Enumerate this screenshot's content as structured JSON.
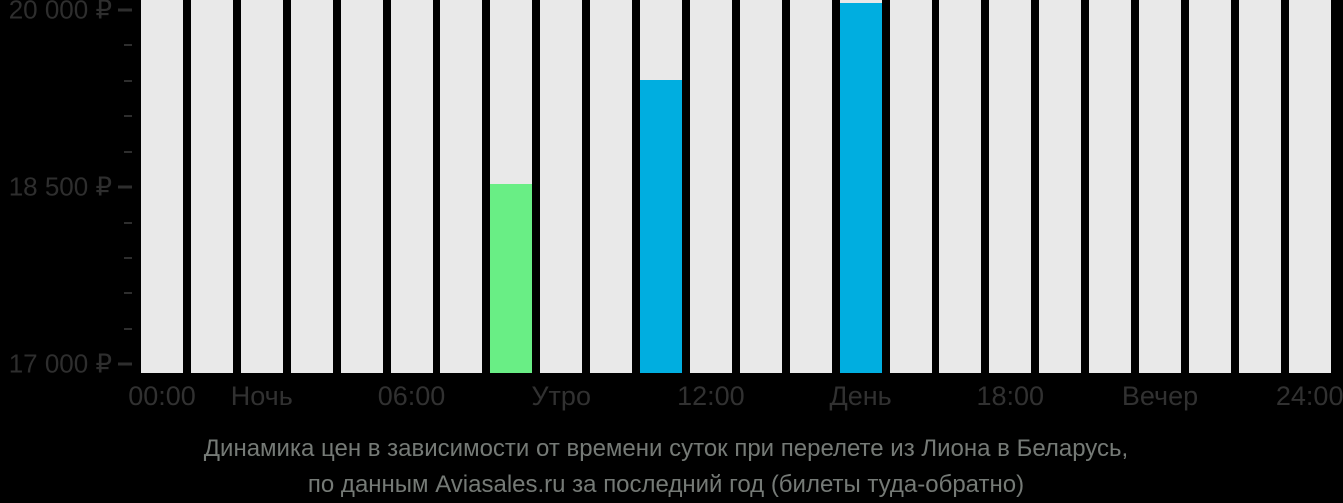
{
  "colors": {
    "background": "#000000",
    "slot_bar": "#E9E9E9",
    "bar_green": "#69EE85",
    "bar_blue": "#00AEE0",
    "y_axis_text": "#2E2E2E",
    "x_axis_text": "#313131",
    "caption_text": "#757A76"
  },
  "chart_data": {
    "type": "bar",
    "description": "Flight ticket price by departure time of day, 24 hourly slots; empty slots shown as light background columns",
    "slots": 24,
    "bars": [
      {
        "hour": 7,
        "value": 18530,
        "color_key": "bar_green"
      },
      {
        "hour": 10,
        "value": 19410,
        "color_key": "bar_blue"
      },
      {
        "hour": 14,
        "value": 20060,
        "color_key": "bar_blue"
      }
    ],
    "y_axis": {
      "ticks": [
        {
          "value": 20000,
          "label": "20 000 ₽"
        },
        {
          "value": 18500,
          "label": "18 500 ₽"
        },
        {
          "value": 17000,
          "label": "17 000 ₽"
        }
      ],
      "minor_step": 300,
      "range": [
        16925,
        20085
      ],
      "unit": "RUB"
    },
    "x_axis": {
      "labels": [
        {
          "slot": 0,
          "text": "00:00"
        },
        {
          "slot": 2,
          "text": "Ночь"
        },
        {
          "slot": 5,
          "text": "06:00"
        },
        {
          "slot": 8,
          "text": "Утро"
        },
        {
          "slot": 11,
          "text": "12:00"
        },
        {
          "slot": 14,
          "text": "День"
        },
        {
          "slot": 17,
          "text": "18:00"
        },
        {
          "slot": 20,
          "text": "Вечер"
        },
        {
          "slot": 23,
          "text": "24:00"
        }
      ]
    },
    "legend": "none",
    "grid": "off",
    "title": "Динамика цен в зависимости от времени суток при перелете из Лиона в Беларусь, по данным Aviasales.ru за последний год (билеты туда-обратно)"
  },
  "caption": {
    "line1": "Динамика цен в зависимости от времени суток при перелете из Лиона в Беларусь,",
    "line2": "по данным Aviasales.ru за последний год (билеты туда-обратно)"
  }
}
